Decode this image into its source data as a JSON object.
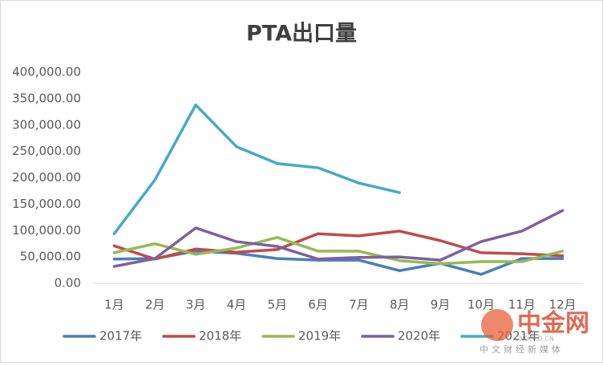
{
  "chart_data": {
    "type": "line",
    "title": "PTA出口量",
    "categories": [
      "1月",
      "2月",
      "3月",
      "4月",
      "5月",
      "6月",
      "7月",
      "8月",
      "9月",
      "10月",
      "11月",
      "12月"
    ],
    "ylim": [
      0,
      400000
    ],
    "yticks": [
      {
        "value": 0,
        "label": "0.00"
      },
      {
        "value": 50000,
        "label": "50,000.00"
      },
      {
        "value": 100000,
        "label": "100,000.00"
      },
      {
        "value": 150000,
        "label": "150,000.00"
      },
      {
        "value": 200000,
        "label": "200,000.00"
      },
      {
        "value": 250000,
        "label": "250,000.00"
      },
      {
        "value": 300000,
        "label": "300,000.00"
      },
      {
        "value": 350000,
        "label": "350,000.00"
      },
      {
        "value": 400000,
        "label": "400,000.00"
      }
    ],
    "grid": false,
    "legend": "bottom",
    "series": [
      {
        "name": "2017年",
        "color": "#4a7ebb",
        "values": [
          46000,
          47000,
          61000,
          57000,
          47000,
          44000,
          44000,
          24000,
          38000,
          17000,
          47000,
          47000
        ]
      },
      {
        "name": "2018年",
        "color": "#be4b48",
        "values": [
          71000,
          46000,
          65000,
          59000,
          64000,
          94000,
          90000,
          99000,
          81000,
          58000,
          56000,
          52000
        ]
      },
      {
        "name": "2019年",
        "color": "#98b954",
        "values": [
          58000,
          75000,
          55000,
          67000,
          87000,
          61000,
          61000,
          43000,
          37000,
          41000,
          41000,
          61000
        ]
      },
      {
        "name": "2020年",
        "color": "#7d60a0",
        "values": [
          32000,
          47000,
          105000,
          79000,
          70000,
          46000,
          49000,
          50000,
          44000,
          79000,
          99000,
          138000
        ]
      },
      {
        "name": "2021年",
        "color": "#46aac5",
        "values": [
          94000,
          196000,
          338000,
          259000,
          227000,
          219000,
          190000,
          172000,
          null,
          null,
          null,
          null
        ]
      }
    ]
  },
  "watermark": {
    "name": "中金网",
    "site": "CNGOLD.CN",
    "slogan": "中文财经新媒体"
  }
}
